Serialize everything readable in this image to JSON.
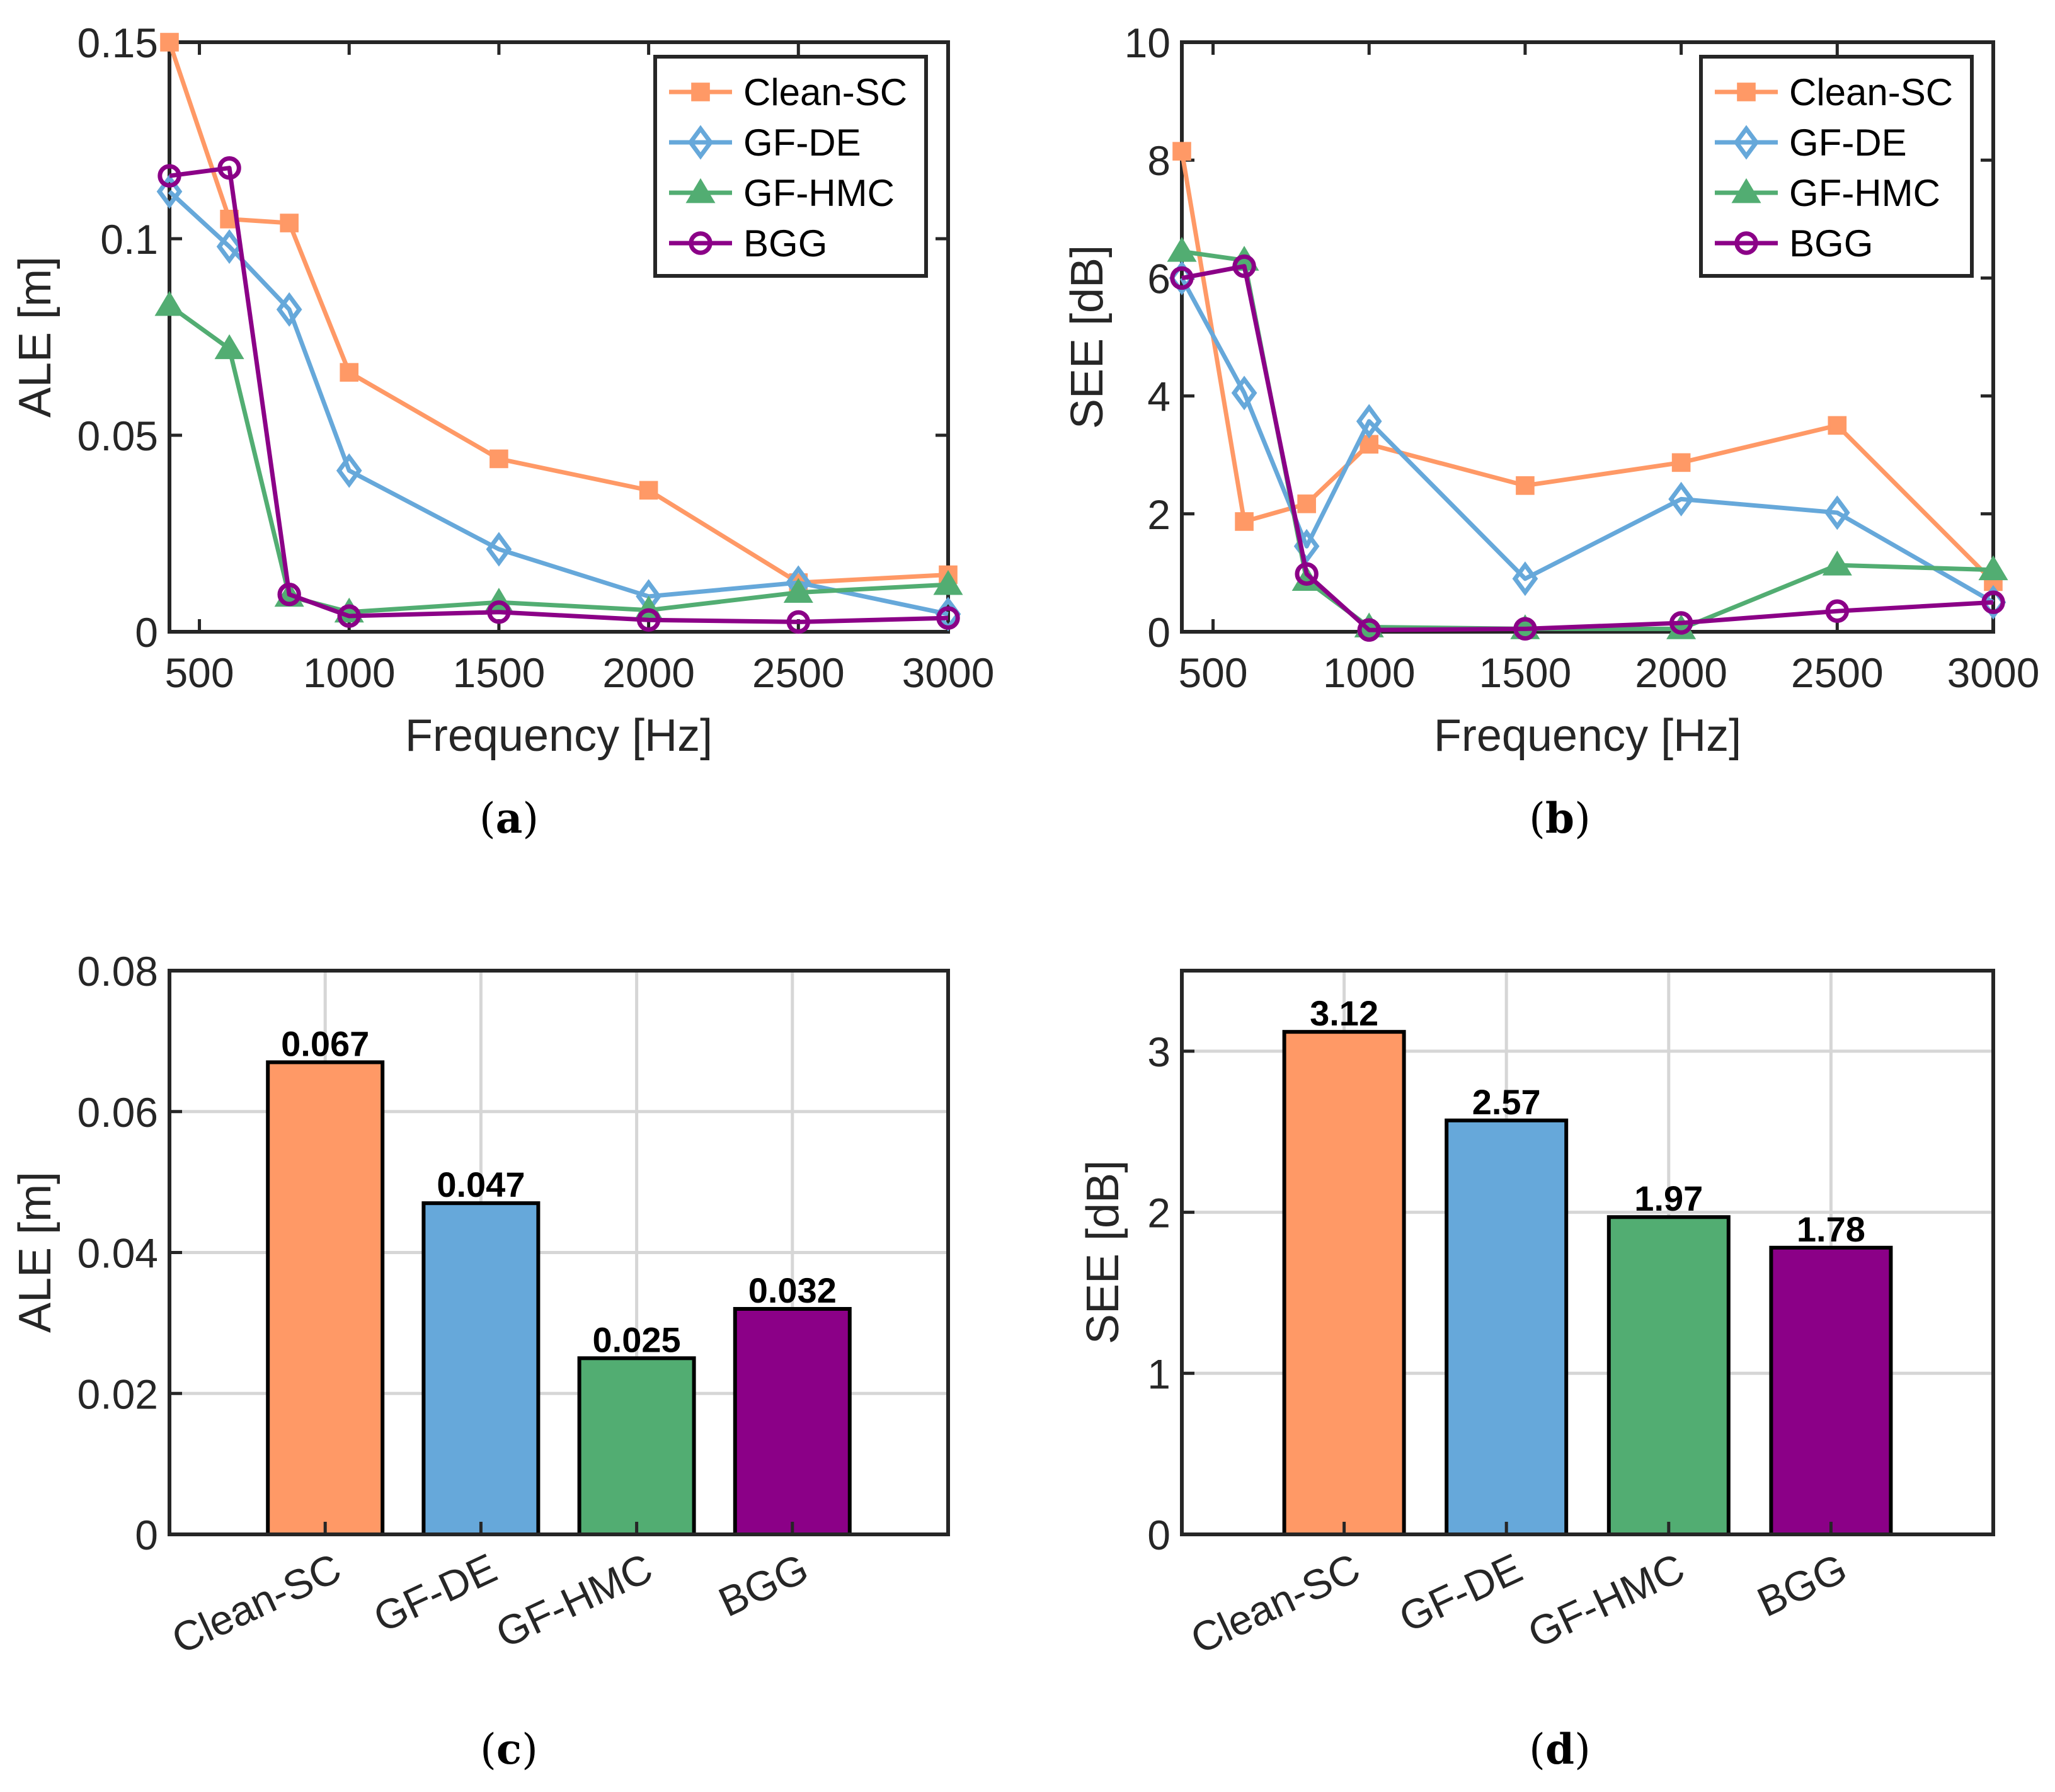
{
  "chart_data": [
    {
      "id": "a",
      "type": "line",
      "panel_label": "a",
      "xlabel": "Frequency [Hz]",
      "ylabel": "ALE [m]",
      "x": [
        400,
        600,
        800,
        1000,
        1500,
        2000,
        2500,
        3000
      ],
      "xlim": [
        400,
        3000
      ],
      "ylim": [
        0,
        0.15
      ],
      "xticks": [
        500,
        1000,
        1500,
        2000,
        2500,
        3000
      ],
      "xtick_labels": [
        "500",
        "1000",
        "1500",
        "2000",
        "2500",
        "3000"
      ],
      "yticks": [
        0,
        0.05,
        0.1,
        0.15
      ],
      "ytick_labels": [
        "0",
        "0.05",
        "0.1",
        "0.15"
      ],
      "grid": false,
      "legend_position": "top-right",
      "series": [
        {
          "name": "Clean-SC",
          "color": "#FF9966",
          "marker": "square",
          "values": [
            0.15,
            0.105,
            0.104,
            0.066,
            0.044,
            0.036,
            0.0125,
            0.0145
          ]
        },
        {
          "name": "GF-DE",
          "color": "#66A8DA",
          "marker": "diamond",
          "values": [
            0.112,
            0.098,
            0.082,
            0.041,
            0.021,
            0.009,
            0.0125,
            0.0045
          ]
        },
        {
          "name": "GF-HMC",
          "color": "#52AD72",
          "marker": "triangle",
          "values": [
            0.083,
            0.072,
            0.009,
            0.005,
            0.0075,
            0.0055,
            0.01,
            0.012
          ]
        },
        {
          "name": "BGG",
          "color": "#8B0087",
          "marker": "circle",
          "values": [
            0.116,
            0.118,
            0.0095,
            0.004,
            0.005,
            0.003,
            0.0025,
            0.0035
          ]
        }
      ]
    },
    {
      "id": "b",
      "type": "line",
      "panel_label": "b",
      "xlabel": "Frequency [Hz]",
      "ylabel": "SEE [dB]",
      "x": [
        400,
        600,
        800,
        1000,
        1500,
        2000,
        2500,
        3000
      ],
      "xlim": [
        400,
        3000
      ],
      "ylim": [
        0,
        10
      ],
      "xticks": [
        500,
        1000,
        1500,
        2000,
        2500,
        3000
      ],
      "xtick_labels": [
        "500",
        "1000",
        "1500",
        "2000",
        "2500",
        "3000"
      ],
      "yticks": [
        0,
        2,
        4,
        6,
        8,
        10
      ],
      "ytick_labels": [
        "0",
        "2",
        "4",
        "6",
        "8",
        "10"
      ],
      "grid": false,
      "legend_position": "top-right",
      "series": [
        {
          "name": "Clean-SC",
          "color": "#FF9966",
          "marker": "square",
          "values": [
            8.15,
            1.87,
            2.17,
            3.18,
            2.48,
            2.87,
            3.5,
            0.85
          ]
        },
        {
          "name": "GF-DE",
          "color": "#66A8DA",
          "marker": "diamond",
          "values": [
            6.0,
            4.05,
            1.45,
            3.57,
            0.9,
            2.25,
            2.02,
            0.5
          ]
        },
        {
          "name": "GF-HMC",
          "color": "#52AD72",
          "marker": "triangle",
          "values": [
            6.45,
            6.3,
            0.87,
            0.08,
            0.05,
            0.05,
            1.13,
            1.05
          ]
        },
        {
          "name": "BGG",
          "color": "#8B0087",
          "marker": "circle",
          "values": [
            6.0,
            6.2,
            0.98,
            0.03,
            0.05,
            0.15,
            0.35,
            0.5
          ]
        }
      ]
    },
    {
      "id": "c",
      "type": "bar",
      "panel_label": "c",
      "xlabel": "",
      "ylabel": "ALE [m]",
      "categories": [
        "Clean-SC",
        "GF-DE",
        "GF-HMC",
        "BGG"
      ],
      "values": [
        0.067,
        0.047,
        0.025,
        0.032
      ],
      "value_labels": [
        "0.067",
        "0.047",
        "0.025",
        "0.032"
      ],
      "colors": [
        "#FF9966",
        "#66A8DA",
        "#52AD72",
        "#8B0087"
      ],
      "ylim": [
        0,
        0.08
      ],
      "yticks": [
        0,
        0.02,
        0.04,
        0.06,
        0.08
      ],
      "ytick_labels": [
        "0",
        "0.02",
        "0.04",
        "0.06",
        "0.08"
      ],
      "grid": true
    },
    {
      "id": "d",
      "type": "bar",
      "panel_label": "d",
      "xlabel": "",
      "ylabel": "SEE [dB]",
      "categories": [
        "Clean-SC",
        "GF-DE",
        "GF-HMC",
        "BGG"
      ],
      "values": [
        3.12,
        2.57,
        1.97,
        1.78
      ],
      "value_labels": [
        "3.12",
        "2.57",
        "1.97",
        "1.78"
      ],
      "colors": [
        "#FF9966",
        "#66A8DA",
        "#52AD72",
        "#8B0087"
      ],
      "ylim": [
        0,
        3.5
      ],
      "yticks": [
        0,
        1,
        2,
        3
      ],
      "ytick_labels": [
        "0",
        "1",
        "2",
        "3"
      ],
      "grid": true
    }
  ]
}
